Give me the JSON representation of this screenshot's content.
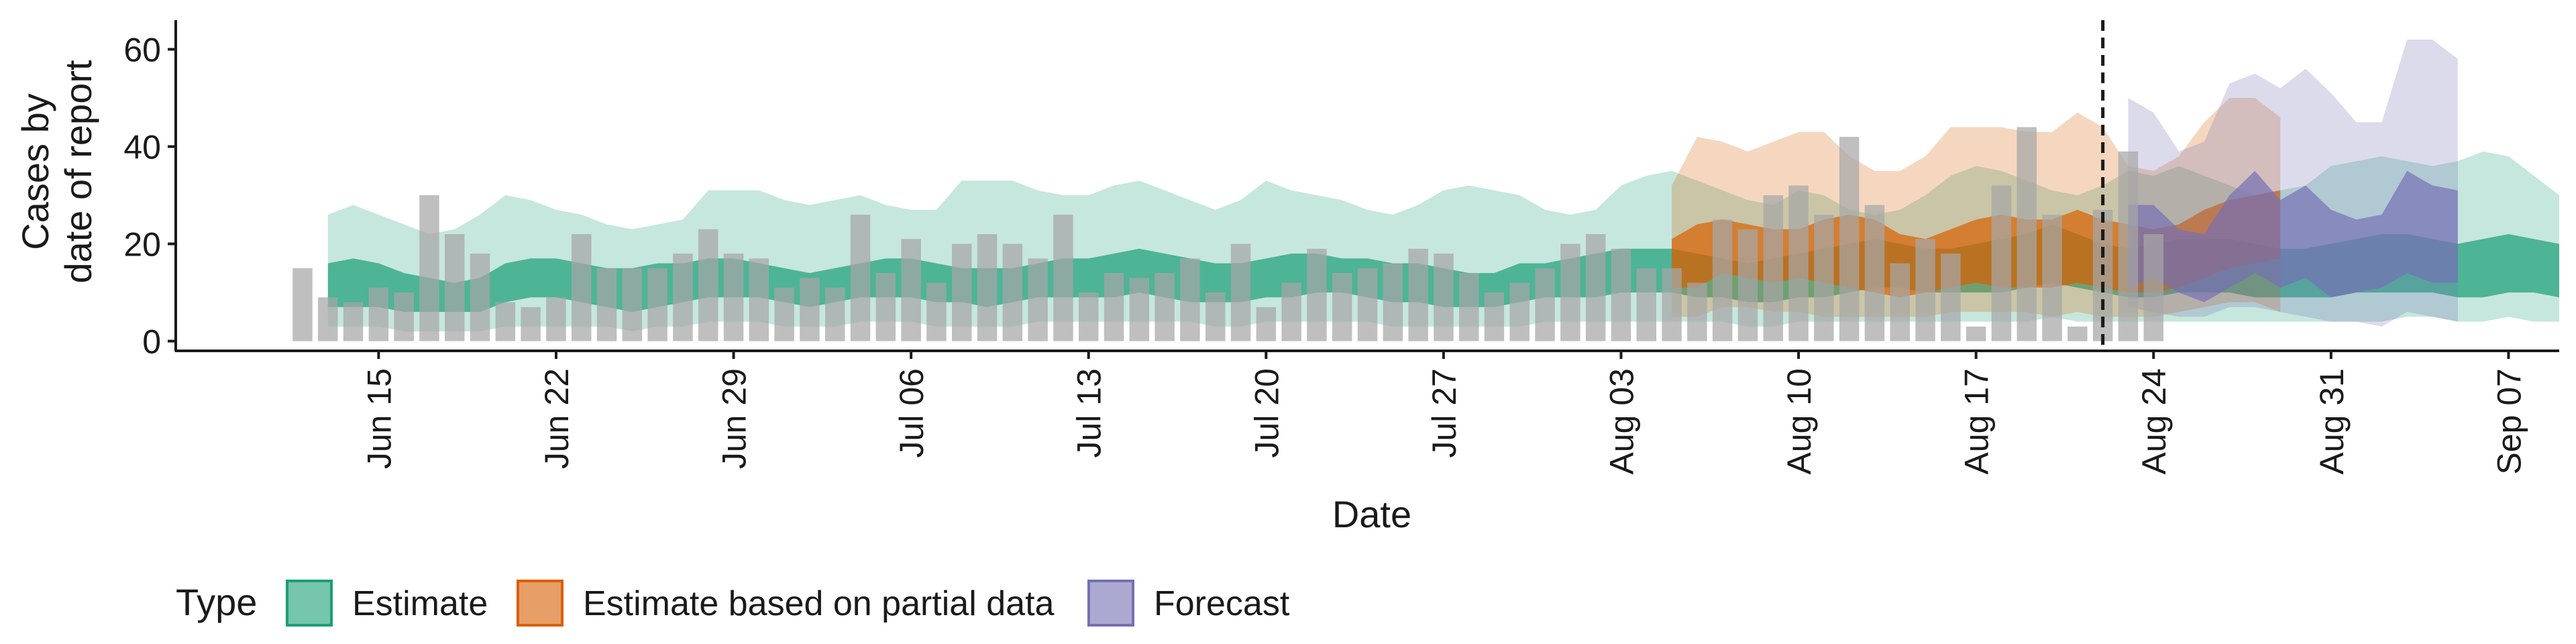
{
  "chart_data": {
    "type": "area",
    "xlabel": "Date",
    "ylabel_lines": [
      "Cases by",
      "date of report"
    ],
    "ylim": [
      -2,
      66
    ],
    "yticks": [
      0,
      20,
      40,
      60
    ],
    "xlim": [
      "2022-06-07",
      "2022-09-09"
    ],
    "xticks": [
      {
        "date": "2022-06-15",
        "label": "Jun 15"
      },
      {
        "date": "2022-06-22",
        "label": "Jun 22"
      },
      {
        "date": "2022-06-29",
        "label": "Jun 29"
      },
      {
        "date": "2022-07-06",
        "label": "Jul 06"
      },
      {
        "date": "2022-07-13",
        "label": "Jul 13"
      },
      {
        "date": "2022-07-20",
        "label": "Jul 20"
      },
      {
        "date": "2022-07-27",
        "label": "Jul 27"
      },
      {
        "date": "2022-08-03",
        "label": "Aug 03"
      },
      {
        "date": "2022-08-10",
        "label": "Aug 10"
      },
      {
        "date": "2022-08-17",
        "label": "Aug 17"
      },
      {
        "date": "2022-08-24",
        "label": "Aug 24"
      },
      {
        "date": "2022-08-31",
        "label": "Aug 31"
      },
      {
        "date": "2022-09-07",
        "label": "Sep 07"
      }
    ],
    "vline_date": "2022-08-22",
    "grid": false,
    "legend": {
      "title": "Type",
      "placement": "bottom",
      "items": [
        {
          "label": "Estimate",
          "color": "#1B9E77"
        },
        {
          "label": "Estimate based on partial data",
          "color": "#D95F02"
        },
        {
          "label": "Forecast",
          "color": "#7570B3"
        }
      ]
    },
    "bars": {
      "color": "#a6a6a6",
      "start_date": "2022-06-12",
      "values": [
        15,
        9,
        8,
        11,
        10,
        30,
        22,
        18,
        8,
        7,
        9,
        22,
        15,
        15,
        15,
        18,
        23,
        18,
        17,
        11,
        13,
        11,
        26,
        14,
        21,
        12,
        20,
        22,
        20,
        17,
        26,
        10,
        14,
        13,
        14,
        17,
        10,
        20,
        7,
        12,
        19,
        14,
        15,
        16,
        19,
        18,
        14,
        10,
        12,
        15,
        20,
        22,
        19,
        15,
        15,
        12,
        25,
        23,
        30,
        32,
        26,
        42,
        28,
        16,
        21,
        18,
        3,
        32,
        44,
        26,
        3,
        27,
        39,
        22
      ]
    },
    "bands": [
      {
        "name": "Estimate",
        "start_date": "2022-06-13",
        "color": "#1B9E77",
        "outer_upper": [
          26,
          28,
          26,
          24,
          22,
          23,
          26,
          30,
          29,
          27,
          26,
          24,
          23,
          24,
          25,
          31,
          31,
          31,
          29,
          28,
          29,
          30,
          28,
          27,
          27,
          33,
          33,
          33,
          31,
          30,
          30,
          32,
          33,
          31,
          29,
          27,
          29,
          33,
          31,
          30,
          29,
          27,
          26,
          28,
          31,
          32,
          31,
          30,
          27,
          26,
          27,
          32,
          34,
          35,
          33,
          31,
          29,
          28,
          31,
          30,
          27,
          26,
          27,
          30,
          34,
          36,
          35,
          33,
          31,
          30,
          32,
          35,
          34,
          36,
          34,
          32,
          30,
          31,
          32,
          36,
          37,
          38,
          37,
          36,
          37,
          39,
          38,
          34,
          30
        ],
        "inner_upper": [
          16,
          17,
          16,
          14,
          13,
          12,
          13,
          16,
          17,
          17,
          16,
          15,
          15,
          16,
          16,
          17,
          17,
          16,
          15,
          14,
          15,
          16,
          17,
          17,
          16,
          15,
          15,
          15,
          16,
          17,
          17,
          18,
          19,
          18,
          17,
          16,
          16,
          17,
          18,
          18,
          17,
          17,
          16,
          16,
          15,
          14,
          14,
          16,
          16,
          17,
          18,
          19,
          19,
          19,
          18,
          17,
          16,
          17,
          18,
          19,
          20,
          21,
          20,
          19,
          19,
          20,
          21,
          22,
          24,
          22,
          20,
          19,
          20,
          21,
          21,
          21,
          20,
          19,
          19,
          20,
          21,
          22,
          22,
          21,
          20,
          21,
          22,
          21,
          20
        ],
        "inner_lower": [
          7,
          7,
          7,
          6,
          6,
          6,
          6,
          8,
          9,
          9,
          8,
          7,
          6,
          7,
          8,
          9,
          9,
          9,
          8,
          7,
          8,
          9,
          9,
          9,
          8,
          8,
          7,
          8,
          9,
          9,
          9,
          9,
          10,
          9,
          8,
          8,
          8,
          9,
          9,
          10,
          10,
          9,
          8,
          8,
          7,
          7,
          7,
          8,
          9,
          9,
          9,
          10,
          10,
          10,
          9,
          9,
          8,
          8,
          9,
          9,
          10,
          11,
          11,
          10,
          10,
          10,
          10,
          11,
          12,
          11,
          10,
          9,
          9,
          10,
          10,
          10,
          9,
          9,
          9,
          9,
          10,
          10,
          10,
          10,
          9,
          9,
          10,
          10,
          9
        ],
        "outer_lower": [
          3,
          3,
          3,
          2,
          2,
          2,
          2,
          3,
          3,
          3,
          3,
          3,
          2,
          3,
          3,
          4,
          4,
          4,
          3,
          3,
          3,
          4,
          4,
          4,
          3,
          3,
          3,
          3,
          4,
          4,
          4,
          4,
          4,
          4,
          4,
          3,
          3,
          4,
          4,
          4,
          4,
          4,
          3,
          3,
          3,
          3,
          3,
          3,
          4,
          4,
          4,
          4,
          4,
          4,
          4,
          4,
          3,
          3,
          4,
          4,
          4,
          4,
          4,
          4,
          4,
          4,
          4,
          4,
          5,
          4,
          4,
          4,
          4,
          4,
          4,
          4,
          4,
          4,
          4,
          4,
          4,
          4,
          5,
          5,
          4,
          4,
          5,
          4,
          4
        ]
      },
      {
        "name": "Estimate based on partial data",
        "start_date": "2022-08-05",
        "color": "#D95F02",
        "outer_upper": [
          32,
          42,
          41,
          39,
          41,
          43,
          43,
          38,
          35,
          35,
          38,
          44,
          44,
          44,
          43,
          43,
          47,
          44,
          36,
          35,
          38,
          45,
          50,
          50,
          46
        ],
        "inner_upper": [
          21,
          24,
          25,
          24,
          23,
          23,
          25,
          26,
          25,
          22,
          21,
          23,
          25,
          26,
          25,
          25,
          27,
          25,
          24,
          23,
          24,
          27,
          29,
          30,
          31
        ],
        "inner_lower": [
          11,
          11,
          14,
          13,
          12,
          13,
          12,
          11,
          10,
          9,
          10,
          11,
          12,
          11,
          11,
          11,
          12,
          11,
          10,
          10,
          11,
          13,
          15,
          16,
          17
        ],
        "outer_lower": [
          5,
          5,
          7,
          7,
          6,
          6,
          5,
          5,
          5,
          5,
          5,
          6,
          6,
          6,
          6,
          5,
          6,
          5,
          5,
          5,
          6,
          7,
          8,
          8,
          6
        ]
      },
      {
        "name": "Forecast",
        "start_date": "2022-08-23",
        "color": "#7570B3",
        "outer_upper": [
          50,
          47,
          39,
          41,
          53,
          55,
          52,
          56,
          51,
          45,
          45,
          62,
          62,
          58
        ],
        "inner_upper": [
          28,
          28,
          23,
          22,
          30,
          35,
          29,
          32,
          27,
          25,
          26,
          35,
          32,
          31
        ],
        "inner_lower": [
          11,
          13,
          10,
          8,
          11,
          14,
          11,
          13,
          9,
          10,
          11,
          14,
          12,
          12
        ],
        "outer_lower": [
          7,
          6,
          5,
          5,
          7,
          7,
          6,
          5,
          4,
          4,
          3,
          6,
          5,
          4
        ]
      }
    ]
  }
}
